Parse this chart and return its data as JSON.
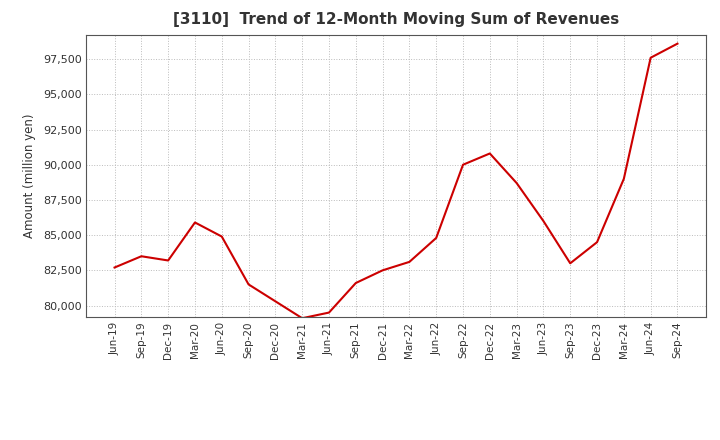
{
  "title": "[3110]  Trend of 12-Month Moving Sum of Revenues",
  "ylabel": "Amount (million yen)",
  "line_color": "#cc0000",
  "background_color": "#ffffff",
  "grid_color": "#bbbbbb",
  "ylim": [
    79200,
    99200
  ],
  "yticks": [
    80000,
    82500,
    85000,
    87500,
    90000,
    92500,
    95000,
    97500
  ],
  "x_labels": [
    "Jun-19",
    "Sep-19",
    "Dec-19",
    "Mar-20",
    "Jun-20",
    "Sep-20",
    "Dec-20",
    "Mar-21",
    "Jun-21",
    "Sep-21",
    "Dec-21",
    "Mar-22",
    "Jun-22",
    "Sep-22",
    "Dec-22",
    "Mar-23",
    "Jun-23",
    "Sep-23",
    "Dec-23",
    "Mar-24",
    "Jun-24",
    "Sep-24"
  ],
  "values": [
    82700,
    83500,
    83200,
    85900,
    84900,
    81500,
    80300,
    79100,
    79500,
    81600,
    82500,
    83100,
    84800,
    90000,
    90800,
    88700,
    86000,
    83000,
    84500,
    89000,
    97600,
    98600
  ]
}
